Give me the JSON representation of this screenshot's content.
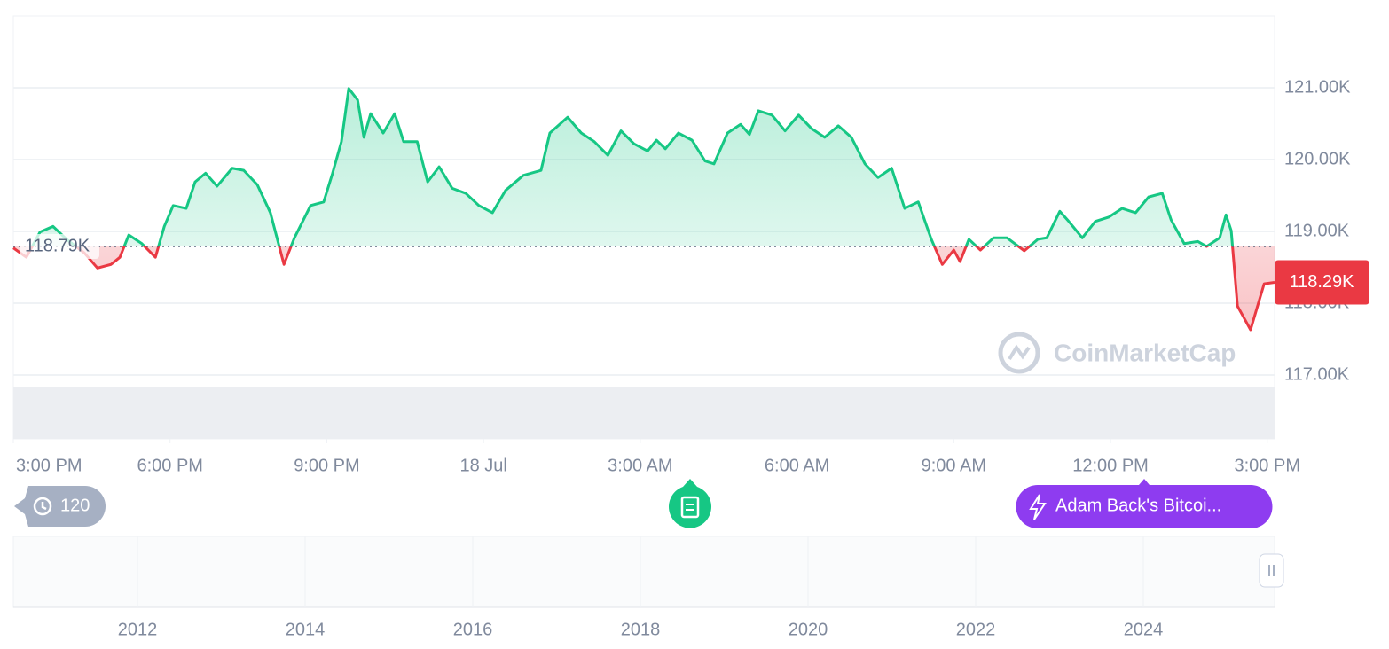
{
  "chart_data": {
    "type": "line",
    "x": [
      0,
      0.25,
      0.51,
      0.76,
      1.02,
      1.36,
      1.61,
      1.87,
      2.04,
      2.21,
      2.46,
      2.72,
      2.89,
      3.06,
      3.31,
      3.48,
      3.68,
      3.9,
      4.19,
      4.41,
      4.67,
      4.92,
      5.18,
      5.38,
      5.69,
      5.94,
      6.11,
      6.28,
      6.42,
      6.59,
      6.71,
      6.84,
      7.08,
      7.3,
      7.47,
      7.73,
      7.93,
      8.15,
      8.4,
      8.66,
      8.91,
      9.17,
      9.42,
      9.76,
      10.1,
      10.27,
      10.61,
      10.87,
      11.12,
      11.38,
      11.63,
      11.88,
      12.14,
      12.31,
      12.48,
      12.73,
      12.99,
      13.24,
      13.41,
      13.67,
      13.92,
      14.09,
      14.26,
      14.52,
      14.77,
      15.03,
      15.28,
      15.53,
      15.79,
      16.04,
      16.3,
      16.55,
      16.81,
      17.06,
      17.32,
      17.57,
      17.78,
      18.0,
      18.12,
      18.29,
      18.51,
      18.76,
      19.02,
      19.35,
      19.61,
      19.78,
      20.03,
      20.2,
      20.46,
      20.71,
      20.97,
      21.22,
      21.48,
      21.73,
      21.99,
      22.16,
      22.41,
      22.67,
      22.84,
      23.09,
      23.21,
      23.31,
      23.43,
      23.68,
      23.94,
      24.14
    ],
    "values": [
      118.77,
      118.64,
      118.99,
      119.07,
      118.89,
      118.7,
      118.49,
      118.54,
      118.64,
      118.95,
      118.83,
      118.64,
      119.07,
      119.36,
      119.32,
      119.69,
      119.81,
      119.63,
      119.88,
      119.85,
      119.65,
      119.26,
      118.54,
      118.91,
      119.36,
      119.41,
      119.81,
      120.25,
      120.99,
      120.83,
      120.31,
      120.64,
      120.37,
      120.64,
      120.25,
      120.25,
      119.69,
      119.9,
      119.6,
      119.53,
      119.36,
      119.26,
      119.57,
      119.78,
      119.85,
      120.37,
      120.59,
      120.37,
      120.25,
      120.06,
      120.4,
      120.22,
      120.12,
      120.27,
      120.15,
      120.37,
      120.27,
      119.98,
      119.94,
      120.37,
      120.49,
      120.35,
      120.68,
      120.62,
      120.4,
      120.62,
      120.43,
      120.31,
      120.47,
      120.31,
      119.94,
      119.75,
      119.88,
      119.32,
      119.41,
      118.89,
      118.54,
      118.74,
      118.58,
      118.89,
      118.74,
      118.91,
      118.91,
      118.73,
      118.89,
      118.91,
      119.28,
      119.14,
      118.91,
      119.14,
      119.2,
      119.32,
      119.26,
      119.48,
      119.53,
      119.16,
      118.83,
      118.86,
      118.79,
      118.91,
      119.23,
      119.01,
      117.96,
      117.63,
      118.27,
      118.29
    ],
    "up_color": "#16c784",
    "down_color": "#ea3943",
    "xlim": [
      0,
      24.14
    ],
    "xticks": [
      {
        "value": 0,
        "label": "3:00 PM"
      },
      {
        "value": 3,
        "label": "6:00 PM"
      },
      {
        "value": 6,
        "label": "9:00 PM"
      },
      {
        "value": 9,
        "label": "18 Jul"
      },
      {
        "value": 12,
        "label": "3:00 AM"
      },
      {
        "value": 15,
        "label": "6:00 AM"
      },
      {
        "value": 18,
        "label": "9:00 AM"
      },
      {
        "value": 21,
        "label": "12:00 PM"
      },
      {
        "value": 24,
        "label": "3:00 PM"
      }
    ],
    "ylim": [
      117,
      122
    ],
    "yticks": [
      {
        "value": 117,
        "label": "117.00K"
      },
      {
        "value": 118,
        "label": "118.00K"
      },
      {
        "value": 119,
        "label": "119.00K"
      },
      {
        "value": 120,
        "label": "120.00K"
      },
      {
        "value": 121,
        "label": "121.00K"
      }
    ],
    "grid": true,
    "reference": {
      "value": 118.79,
      "label": "118.79K"
    },
    "current": {
      "value": 118.29,
      "label": "118.29K"
    }
  },
  "ui": {
    "history_count": "120",
    "event": "Adam Back's Bitcoi...",
    "watermark": "CoinMarketCap",
    "navigator_years": [
      "2012",
      "2014",
      "2016",
      "2018",
      "2020",
      "2022",
      "2024"
    ]
  }
}
